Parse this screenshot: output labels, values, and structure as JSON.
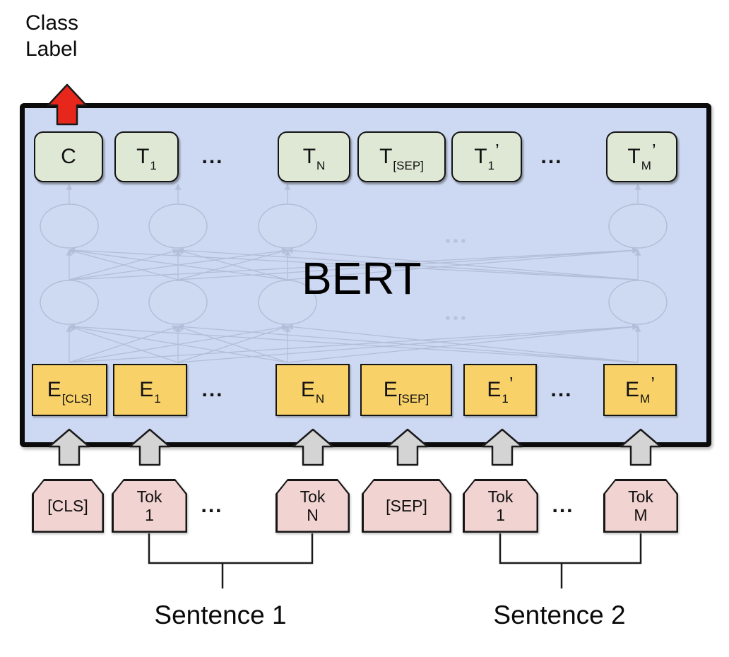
{
  "class_label": {
    "line1": "Class",
    "line2": "Label"
  },
  "bert_label": "BERT",
  "ellipsis": "...",
  "output_row": [
    {
      "main": "C",
      "sub": "",
      "prime": ""
    },
    {
      "main": "T",
      "sub": "1",
      "prime": ""
    },
    {
      "dots": true
    },
    {
      "main": "T",
      "sub": "N",
      "prime": ""
    },
    {
      "main": "T",
      "sub": "[SEP]",
      "prime": ""
    },
    {
      "main": "T",
      "sub": "1",
      "prime": "’"
    },
    {
      "dots": true
    },
    {
      "main": "T",
      "sub": "M",
      "prime": "’"
    }
  ],
  "embedding_row": [
    {
      "main": "E",
      "sub": "[CLS]",
      "prime": ""
    },
    {
      "main": "E",
      "sub": "1",
      "prime": ""
    },
    {
      "dots": true
    },
    {
      "main": "E",
      "sub": "N",
      "prime": ""
    },
    {
      "main": "E",
      "sub": "[SEP]",
      "prime": ""
    },
    {
      "main": "E",
      "sub": "1",
      "prime": "’"
    },
    {
      "dots": true
    },
    {
      "main": "E",
      "sub": "M",
      "prime": "’"
    }
  ],
  "token_row": [
    {
      "lines": [
        "[CLS]"
      ]
    },
    {
      "lines": [
        "Tok",
        "1"
      ]
    },
    {
      "dots": true
    },
    {
      "lines": [
        "Tok",
        "N"
      ]
    },
    {
      "lines": [
        "[SEP]"
      ]
    },
    {
      "lines": [
        "Tok",
        "1"
      ]
    },
    {
      "dots": true
    },
    {
      "lines": [
        "Tok",
        "M"
      ]
    }
  ],
  "sentence_labels": [
    "Sentence 1",
    "Sentence 2"
  ],
  "colors": {
    "bert_fill": "#cdd9f2",
    "output_box_fill": "#dfe8d5",
    "embedding_box_fill": "#f8d169",
    "token_box_fill": "#f1d3d1",
    "class_arrow_red": "#e8271c",
    "input_arrow_gray": "#d4d4d4",
    "network_faint": "#a4afc9",
    "outline_black": "#1a1a1a"
  }
}
